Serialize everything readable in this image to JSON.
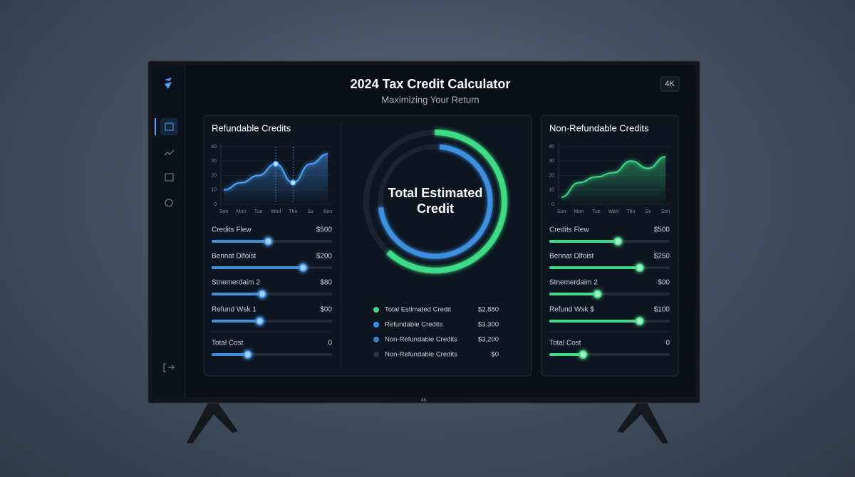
{
  "header": {
    "title": "2024 Tax Credit Calculator",
    "subtitle": "Maximizing Your Return",
    "badge": "4K"
  },
  "bezel_label": "4K",
  "panels": [
    {
      "title": "Refundable Credits",
      "chart": {
        "categories": [
          "Son",
          "Mon",
          "Tue",
          "Wed",
          "Thu",
          "Sv",
          "Sen"
        ],
        "values": [
          10,
          15,
          20,
          28,
          15,
          28,
          35
        ],
        "ylim": [
          0,
          40
        ],
        "yticks": [
          0,
          10,
          20,
          30,
          40
        ],
        "color": "#4aa3ff",
        "highlight": [
          3,
          4
        ]
      },
      "color": "#3d8fe0",
      "sliders": [
        {
          "label": "Credits Flew",
          "amount": "$500",
          "position": 0.47
        },
        {
          "label": "Bennat Dlfoist",
          "amount": "$200",
          "position": 0.76
        },
        {
          "label": "Stnemerdaim 2",
          "amount": "$80",
          "position": 0.42
        },
        {
          "label": "Refund Wsk 1",
          "amount": "$00",
          "position": 0.4
        },
        {
          "label": "Total Cost",
          "amount": "0",
          "position": 0.3
        }
      ]
    },
    {
      "title": "Non-Refundable Credits",
      "chart": {
        "categories": [
          "Son",
          "Mon",
          "Tue",
          "Wed",
          "Thu",
          "Sv",
          "Sen"
        ],
        "values": [
          5,
          15,
          19,
          22,
          30,
          25,
          33
        ],
        "ylim": [
          0,
          40
        ],
        "yticks": [
          0,
          10,
          20,
          30,
          40
        ],
        "color": "#3ddc84",
        "highlight": []
      },
      "color": "#3ddc84",
      "sliders": [
        {
          "label": "Credits Flew",
          "amount": "$500",
          "position": 0.57
        },
        {
          "label": "Bennat Dlfoist",
          "amount": "$250",
          "position": 0.75
        },
        {
          "label": "Stnemerdaim 2",
          "amount": "$00",
          "position": 0.4
        },
        {
          "label": "Refund Wsk $",
          "amount": "$100",
          "position": 0.75
        },
        {
          "label": "Total Cost",
          "amount": "0",
          "position": 0.28
        }
      ]
    }
  ],
  "summary": {
    "center_label": "Total Estimated Credit",
    "legend": [
      {
        "label": "Total Estimated Credit",
        "amount": "$2,880",
        "color": "#3ddc84"
      },
      {
        "label": "Refundable Credits",
        "amount": "$3,300",
        "color": "#3d8fe0"
      },
      {
        "label": "Non-Refundable Credits",
        "amount": "$3,200",
        "color": "#2f7fd6"
      },
      {
        "label": "Non-Refundable Credits",
        "amount": "$0",
        "color": "#2a3340"
      }
    ]
  }
}
